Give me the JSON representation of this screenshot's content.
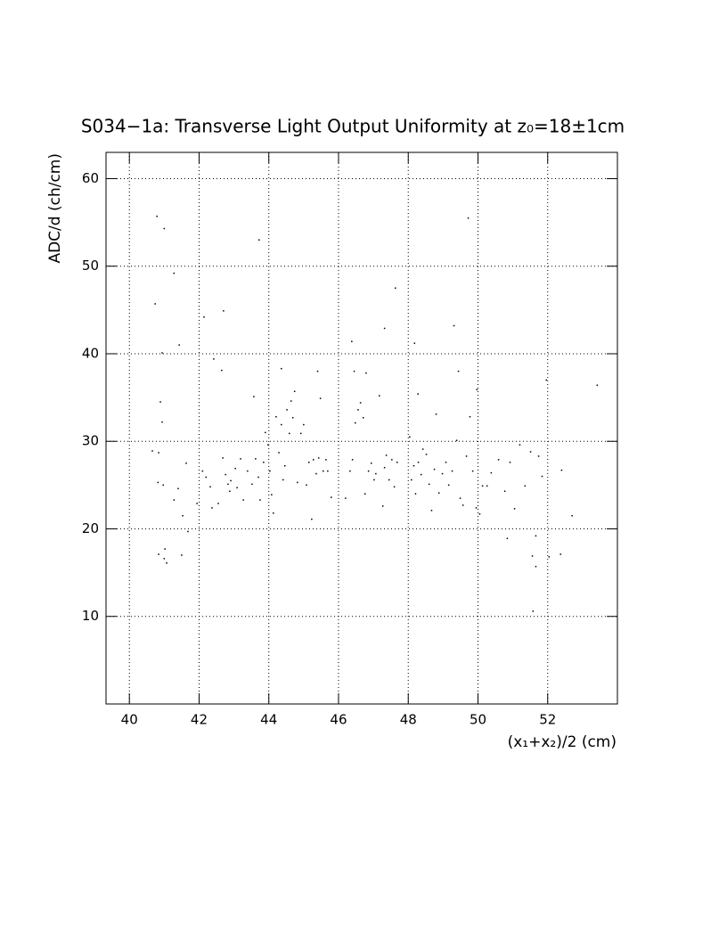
{
  "chart_data": {
    "type": "scatter",
    "title": "S034−1a: Transverse Light Output Uniformity at z₀=18±1cm",
    "x_label": "(x₁+x₂)/2 (cm)",
    "y_label": "ADC/d (ch/cm)",
    "xlim": [
      39.33,
      54
    ],
    "ylim": [
      0,
      63
    ],
    "xticks": [
      40,
      42,
      44,
      46,
      48,
      50,
      52
    ],
    "yticks": [
      10,
      20,
      30,
      40,
      50,
      60
    ],
    "grid": true,
    "color": "#000000",
    "x": [
      40.79,
      41.0,
      41.28,
      40.74,
      40.94,
      41.43,
      42.7,
      42.14,
      43.72,
      42.42,
      42.65,
      40.89,
      40.94,
      49.72,
      47.63,
      49.31,
      47.32,
      46.38,
      48.18,
      53.42,
      51.96,
      49.97,
      44.36,
      45.4,
      46.45,
      46.79,
      49.44,
      43.57,
      48.28,
      41.0,
      41.07,
      41.02,
      40.84,
      41.5,
      41.68,
      51.56,
      51.66,
      52.04,
      52.37,
      51.58,
      51.66,
      50.84,
      40.66,
      40.84,
      40.82,
      40.97,
      41.28,
      41.4,
      41.53,
      41.63,
      41.94,
      42.1,
      42.2,
      42.32,
      42.37,
      42.55,
      42.68,
      42.76,
      42.83,
      42.88,
      42.91,
      43.04,
      43.09,
      43.19,
      43.27,
      43.39,
      43.52,
      43.62,
      43.7,
      43.75,
      43.85,
      43.9,
      43.98,
      44.03,
      44.08,
      44.13,
      44.21,
      44.29,
      44.36,
      44.41,
      44.46,
      44.52,
      44.59,
      44.64,
      44.69,
      44.74,
      44.82,
      44.92,
      45.0,
      45.08,
      45.15,
      45.23,
      45.28,
      45.36,
      45.43,
      45.48,
      45.56,
      45.64,
      45.69,
      45.79,
      46.2,
      46.33,
      46.4,
      46.48,
      46.56,
      46.63,
      46.71,
      46.76,
      46.86,
      46.94,
      47.02,
      47.07,
      47.17,
      47.27,
      47.32,
      47.37,
      47.45,
      47.53,
      47.6,
      47.68,
      48.04,
      48.09,
      48.16,
      48.21,
      48.29,
      48.37,
      48.42,
      48.52,
      48.6,
      48.67,
      48.75,
      48.8,
      48.88,
      48.98,
      49.08,
      49.16,
      49.26,
      49.39,
      49.49,
      49.57,
      49.67,
      49.77,
      49.85,
      49.95,
      50.05,
      50.13,
      50.26,
      50.38,
      50.59,
      50.77,
      50.92,
      51.05,
      51.2,
      51.35,
      51.51,
      51.74,
      51.84,
      52.4,
      52.7
    ],
    "values": [
      55.7,
      54.3,
      49.2,
      45.7,
      40.1,
      41.0,
      44.9,
      44.2,
      53.0,
      39.4,
      38.1,
      34.5,
      32.2,
      55.5,
      47.5,
      43.2,
      42.9,
      41.4,
      41.2,
      36.4,
      37.0,
      35.9,
      38.3,
      38.0,
      38.0,
      37.8,
      38.0,
      35.1,
      35.4,
      16.6,
      16.1,
      17.7,
      17.1,
      17.0,
      19.7,
      16.9,
      15.7,
      16.8,
      17.1,
      10.6,
      19.2,
      18.9,
      28.9,
      28.7,
      25.3,
      25.0,
      23.3,
      24.6,
      21.5,
      27.5,
      22.9,
      26.6,
      25.9,
      24.8,
      22.4,
      22.9,
      28.1,
      26.2,
      25.1,
      24.3,
      25.5,
      26.9,
      24.7,
      28.0,
      23.3,
      26.6,
      25.1,
      28.0,
      25.9,
      23.3,
      27.6,
      31.0,
      29.6,
      26.6,
      23.9,
      21.8,
      32.8,
      28.7,
      31.9,
      25.6,
      27.2,
      33.6,
      30.9,
      34.6,
      32.7,
      35.7,
      25.3,
      30.9,
      31.9,
      25.0,
      27.6,
      21.1,
      27.9,
      26.3,
      28.1,
      34.9,
      26.6,
      27.9,
      26.6,
      23.6,
      23.5,
      26.6,
      27.9,
      32.1,
      33.6,
      34.4,
      32.7,
      24.0,
      26.6,
      27.5,
      25.6,
      26.3,
      35.2,
      22.6,
      27.0,
      28.4,
      25.6,
      27.9,
      24.8,
      27.6,
      30.5,
      25.6,
      27.2,
      24.0,
      27.6,
      26.2,
      29.1,
      28.5,
      25.1,
      22.1,
      26.8,
      33.1,
      24.1,
      26.3,
      27.6,
      25.0,
      26.6,
      30.1,
      23.5,
      22.7,
      28.3,
      32.8,
      26.6,
      22.4,
      21.7,
      24.9,
      24.9,
      26.4,
      27.9,
      24.3,
      27.6,
      22.3,
      29.6,
      24.9,
      28.8,
      28.3,
      26.0,
      26.7,
      21.5
    ]
  }
}
